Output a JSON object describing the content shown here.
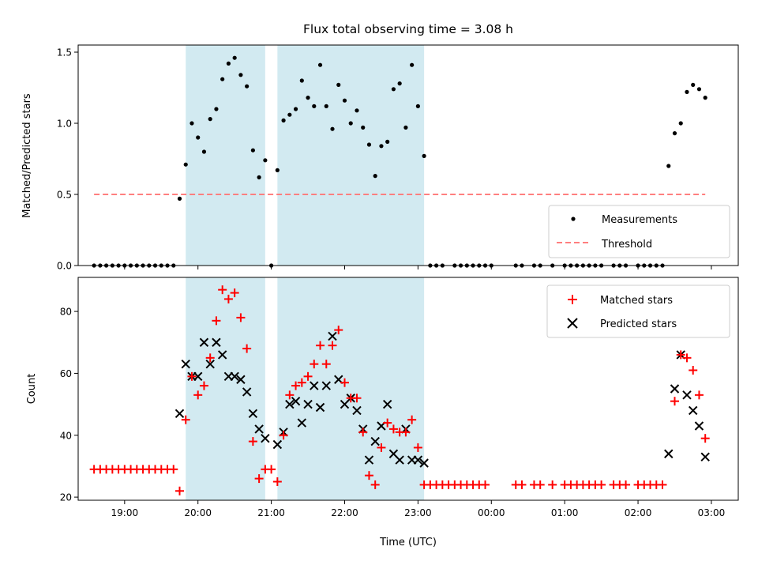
{
  "chart_data": [
    {
      "type": "scatter",
      "title": "Flux total observing time = 3.08 h",
      "ylabel": "Matched/Predicted stars",
      "xlabel": "",
      "xlim": [
        "18:22",
        "03:22"
      ],
      "ylim": [
        0.0,
        1.55
      ],
      "yticks": [
        "0.0",
        "0.5",
        "1.0",
        "1.5"
      ],
      "legend_position": "lower-right",
      "shaded_intervals": [
        [
          "19:50",
          "20:55"
        ],
        [
          "21:05",
          "23:05"
        ]
      ],
      "shade_color": "#add8e6",
      "series": [
        {
          "name": "Measurements",
          "marker": "dot",
          "color": "#000000",
          "points": [
            [
              "18:35",
              0
            ],
            [
              "18:40",
              0
            ],
            [
              "18:45",
              0
            ],
            [
              "18:50",
              0
            ],
            [
              "18:55",
              0
            ],
            [
              "19:00",
              0
            ],
            [
              "19:05",
              0
            ],
            [
              "19:10",
              0
            ],
            [
              "19:15",
              0
            ],
            [
              "19:20",
              0
            ],
            [
              "19:25",
              0
            ],
            [
              "19:30",
              0
            ],
            [
              "19:35",
              0
            ],
            [
              "19:40",
              0
            ],
            [
              "19:45",
              0.47
            ],
            [
              "19:50",
              0.71
            ],
            [
              "19:55",
              1.0
            ],
            [
              "20:00",
              0.9
            ],
            [
              "20:05",
              0.8
            ],
            [
              "20:10",
              1.03
            ],
            [
              "20:15",
              1.1
            ],
            [
              "20:20",
              1.31
            ],
            [
              "20:25",
              1.42
            ],
            [
              "20:30",
              1.46
            ],
            [
              "20:35",
              1.34
            ],
            [
              "20:40",
              1.26
            ],
            [
              "20:45",
              0.81
            ],
            [
              "20:50",
              0.62
            ],
            [
              "20:55",
              0.74
            ],
            [
              "21:00",
              0
            ],
            [
              "21:05",
              0.67
            ],
            [
              "21:10",
              1.02
            ],
            [
              "21:15",
              1.06
            ],
            [
              "21:20",
              1.1
            ],
            [
              "21:25",
              1.3
            ],
            [
              "21:30",
              1.18
            ],
            [
              "21:35",
              1.12
            ],
            [
              "21:40",
              1.41
            ],
            [
              "21:45",
              1.12
            ],
            [
              "21:50",
              0.96
            ],
            [
              "21:55",
              1.27
            ],
            [
              "22:00",
              1.16
            ],
            [
              "22:05",
              1.0
            ],
            [
              "22:10",
              1.09
            ],
            [
              "22:15",
              0.97
            ],
            [
              "22:20",
              0.85
            ],
            [
              "22:25",
              0.63
            ],
            [
              "22:30",
              0.84
            ],
            [
              "22:35",
              0.87
            ],
            [
              "22:40",
              1.24
            ],
            [
              "22:45",
              1.28
            ],
            [
              "22:50",
              0.97
            ],
            [
              "22:55",
              1.41
            ],
            [
              "23:00",
              1.12
            ],
            [
              "23:05",
              0.77
            ],
            [
              "23:10",
              0
            ],
            [
              "23:15",
              0
            ],
            [
              "23:20",
              0
            ],
            [
              "23:30",
              0
            ],
            [
              "23:35",
              0
            ],
            [
              "23:40",
              0
            ],
            [
              "23:45",
              0
            ],
            [
              "23:50",
              0
            ],
            [
              "23:55",
              0
            ],
            [
              "00:00",
              0
            ],
            [
              "00:20",
              0
            ],
            [
              "00:25",
              0
            ],
            [
              "00:35",
              0
            ],
            [
              "00:40",
              0
            ],
            [
              "00:50",
              0
            ],
            [
              "01:00",
              0
            ],
            [
              "01:05",
              0
            ],
            [
              "01:10",
              0
            ],
            [
              "01:15",
              0
            ],
            [
              "01:20",
              0
            ],
            [
              "01:25",
              0
            ],
            [
              "01:30",
              0
            ],
            [
              "01:40",
              0
            ],
            [
              "01:45",
              0
            ],
            [
              "01:50",
              0
            ],
            [
              "02:00",
              0
            ],
            [
              "02:05",
              0
            ],
            [
              "02:10",
              0
            ],
            [
              "02:15",
              0
            ],
            [
              "02:20",
              0
            ],
            [
              "02:25",
              0.7
            ],
            [
              "02:30",
              0.93
            ],
            [
              "02:35",
              1.0
            ],
            [
              "02:40",
              1.22
            ],
            [
              "02:45",
              1.27
            ],
            [
              "02:50",
              1.24
            ],
            [
              "02:55",
              1.18
            ]
          ]
        },
        {
          "name": "Threshold",
          "marker": "dashed-line",
          "color": "#ff7f7f",
          "points": [
            [
              "18:35",
              0.5
            ],
            [
              "02:55",
              0.5
            ]
          ]
        }
      ]
    },
    {
      "type": "scatter",
      "title": "",
      "ylabel": "Count",
      "xlabel": "Time (UTC)",
      "xlim": [
        "18:22",
        "03:22"
      ],
      "ylim": [
        19,
        91
      ],
      "yticks": [
        "20",
        "40",
        "60",
        "80"
      ],
      "xticks": [
        "19:00",
        "20:00",
        "21:00",
        "22:00",
        "23:00",
        "00:00",
        "01:00",
        "02:00",
        "03:00"
      ],
      "legend_position": "upper-right",
      "shaded_intervals": [
        [
          "19:50",
          "20:55"
        ],
        [
          "21:05",
          "23:05"
        ]
      ],
      "shade_color": "#add8e6",
      "series": [
        {
          "name": "Matched stars",
          "marker": "plus",
          "color": "#ff0000",
          "points": [
            [
              "18:35",
              29
            ],
            [
              "18:40",
              29
            ],
            [
              "18:45",
              29
            ],
            [
              "18:50",
              29
            ],
            [
              "18:55",
              29
            ],
            [
              "19:00",
              29
            ],
            [
              "19:05",
              29
            ],
            [
              "19:10",
              29
            ],
            [
              "19:15",
              29
            ],
            [
              "19:20",
              29
            ],
            [
              "19:25",
              29
            ],
            [
              "19:30",
              29
            ],
            [
              "19:35",
              29
            ],
            [
              "19:40",
              29
            ],
            [
              "19:45",
              22
            ],
            [
              "19:50",
              45
            ],
            [
              "19:55",
              59
            ],
            [
              "20:00",
              53
            ],
            [
              "20:05",
              56
            ],
            [
              "20:10",
              65
            ],
            [
              "20:15",
              77
            ],
            [
              "20:20",
              87
            ],
            [
              "20:25",
              84
            ],
            [
              "20:30",
              86
            ],
            [
              "20:35",
              78
            ],
            [
              "20:40",
              68
            ],
            [
              "20:45",
              38
            ],
            [
              "20:50",
              26
            ],
            [
              "20:55",
              29
            ],
            [
              "21:00",
              29
            ],
            [
              "21:05",
              25
            ],
            [
              "21:10",
              40
            ],
            [
              "21:15",
              53
            ],
            [
              "21:20",
              56
            ],
            [
              "21:25",
              57
            ],
            [
              "21:30",
              59
            ],
            [
              "21:35",
              63
            ],
            [
              "21:40",
              69
            ],
            [
              "21:45",
              63
            ],
            [
              "21:50",
              69
            ],
            [
              "21:55",
              74
            ],
            [
              "22:00",
              57
            ],
            [
              "22:05",
              52
            ],
            [
              "22:10",
              52
            ],
            [
              "22:15",
              41
            ],
            [
              "22:20",
              27
            ],
            [
              "22:25",
              24
            ],
            [
              "22:30",
              36
            ],
            [
              "22:35",
              44
            ],
            [
              "22:40",
              42
            ],
            [
              "22:45",
              41
            ],
            [
              "22:50",
              41
            ],
            [
              "22:55",
              45
            ],
            [
              "23:00",
              36
            ],
            [
              "23:05",
              24
            ],
            [
              "23:10",
              24
            ],
            [
              "23:15",
              24
            ],
            [
              "23:20",
              24
            ],
            [
              "23:25",
              24
            ],
            [
              "23:30",
              24
            ],
            [
              "23:35",
              24
            ],
            [
              "23:40",
              24
            ],
            [
              "23:45",
              24
            ],
            [
              "23:50",
              24
            ],
            [
              "23:55",
              24
            ],
            [
              "00:20",
              24
            ],
            [
              "00:25",
              24
            ],
            [
              "00:35",
              24
            ],
            [
              "00:40",
              24
            ],
            [
              "00:50",
              24
            ],
            [
              "01:00",
              24
            ],
            [
              "01:05",
              24
            ],
            [
              "01:10",
              24
            ],
            [
              "01:15",
              24
            ],
            [
              "01:20",
              24
            ],
            [
              "01:25",
              24
            ],
            [
              "01:30",
              24
            ],
            [
              "01:40",
              24
            ],
            [
              "01:45",
              24
            ],
            [
              "01:50",
              24
            ],
            [
              "02:00",
              24
            ],
            [
              "02:05",
              24
            ],
            [
              "02:10",
              24
            ],
            [
              "02:15",
              24
            ],
            [
              "02:20",
              24
            ],
            [
              "02:30",
              51
            ],
            [
              "02:35",
              66
            ],
            [
              "02:40",
              65
            ],
            [
              "02:45",
              61
            ],
            [
              "02:50",
              53
            ],
            [
              "02:55",
              39
            ]
          ]
        },
        {
          "name": "Predicted stars",
          "marker": "x",
          "color": "#000000",
          "points": [
            [
              "19:45",
              47
            ],
            [
              "19:50",
              63
            ],
            [
              "19:55",
              59
            ],
            [
              "20:00",
              59
            ],
            [
              "20:05",
              70
            ],
            [
              "20:10",
              63
            ],
            [
              "20:15",
              70
            ],
            [
              "20:20",
              66
            ],
            [
              "20:25",
              59
            ],
            [
              "20:30",
              59
            ],
            [
              "20:35",
              58
            ],
            [
              "20:40",
              54
            ],
            [
              "20:45",
              47
            ],
            [
              "20:50",
              42
            ],
            [
              "20:55",
              39
            ],
            [
              "21:05",
              37
            ],
            [
              "21:10",
              41
            ],
            [
              "21:15",
              50
            ],
            [
              "21:20",
              51
            ],
            [
              "21:25",
              44
            ],
            [
              "21:30",
              50
            ],
            [
              "21:35",
              56
            ],
            [
              "21:40",
              49
            ],
            [
              "21:45",
              56
            ],
            [
              "21:50",
              72
            ],
            [
              "21:55",
              58
            ],
            [
              "22:00",
              50
            ],
            [
              "22:05",
              52
            ],
            [
              "22:10",
              48
            ],
            [
              "22:15",
              42
            ],
            [
              "22:20",
              32
            ],
            [
              "22:25",
              38
            ],
            [
              "22:30",
              43
            ],
            [
              "22:35",
              50
            ],
            [
              "22:40",
              34
            ],
            [
              "22:45",
              32
            ],
            [
              "22:50",
              42
            ],
            [
              "22:55",
              32
            ],
            [
              "23:00",
              32
            ],
            [
              "23:05",
              31
            ],
            [
              "02:25",
              34
            ],
            [
              "02:30",
              55
            ],
            [
              "02:35",
              66
            ],
            [
              "02:40",
              53
            ],
            [
              "02:45",
              48
            ],
            [
              "02:50",
              43
            ],
            [
              "02:55",
              33
            ]
          ]
        }
      ]
    }
  ]
}
